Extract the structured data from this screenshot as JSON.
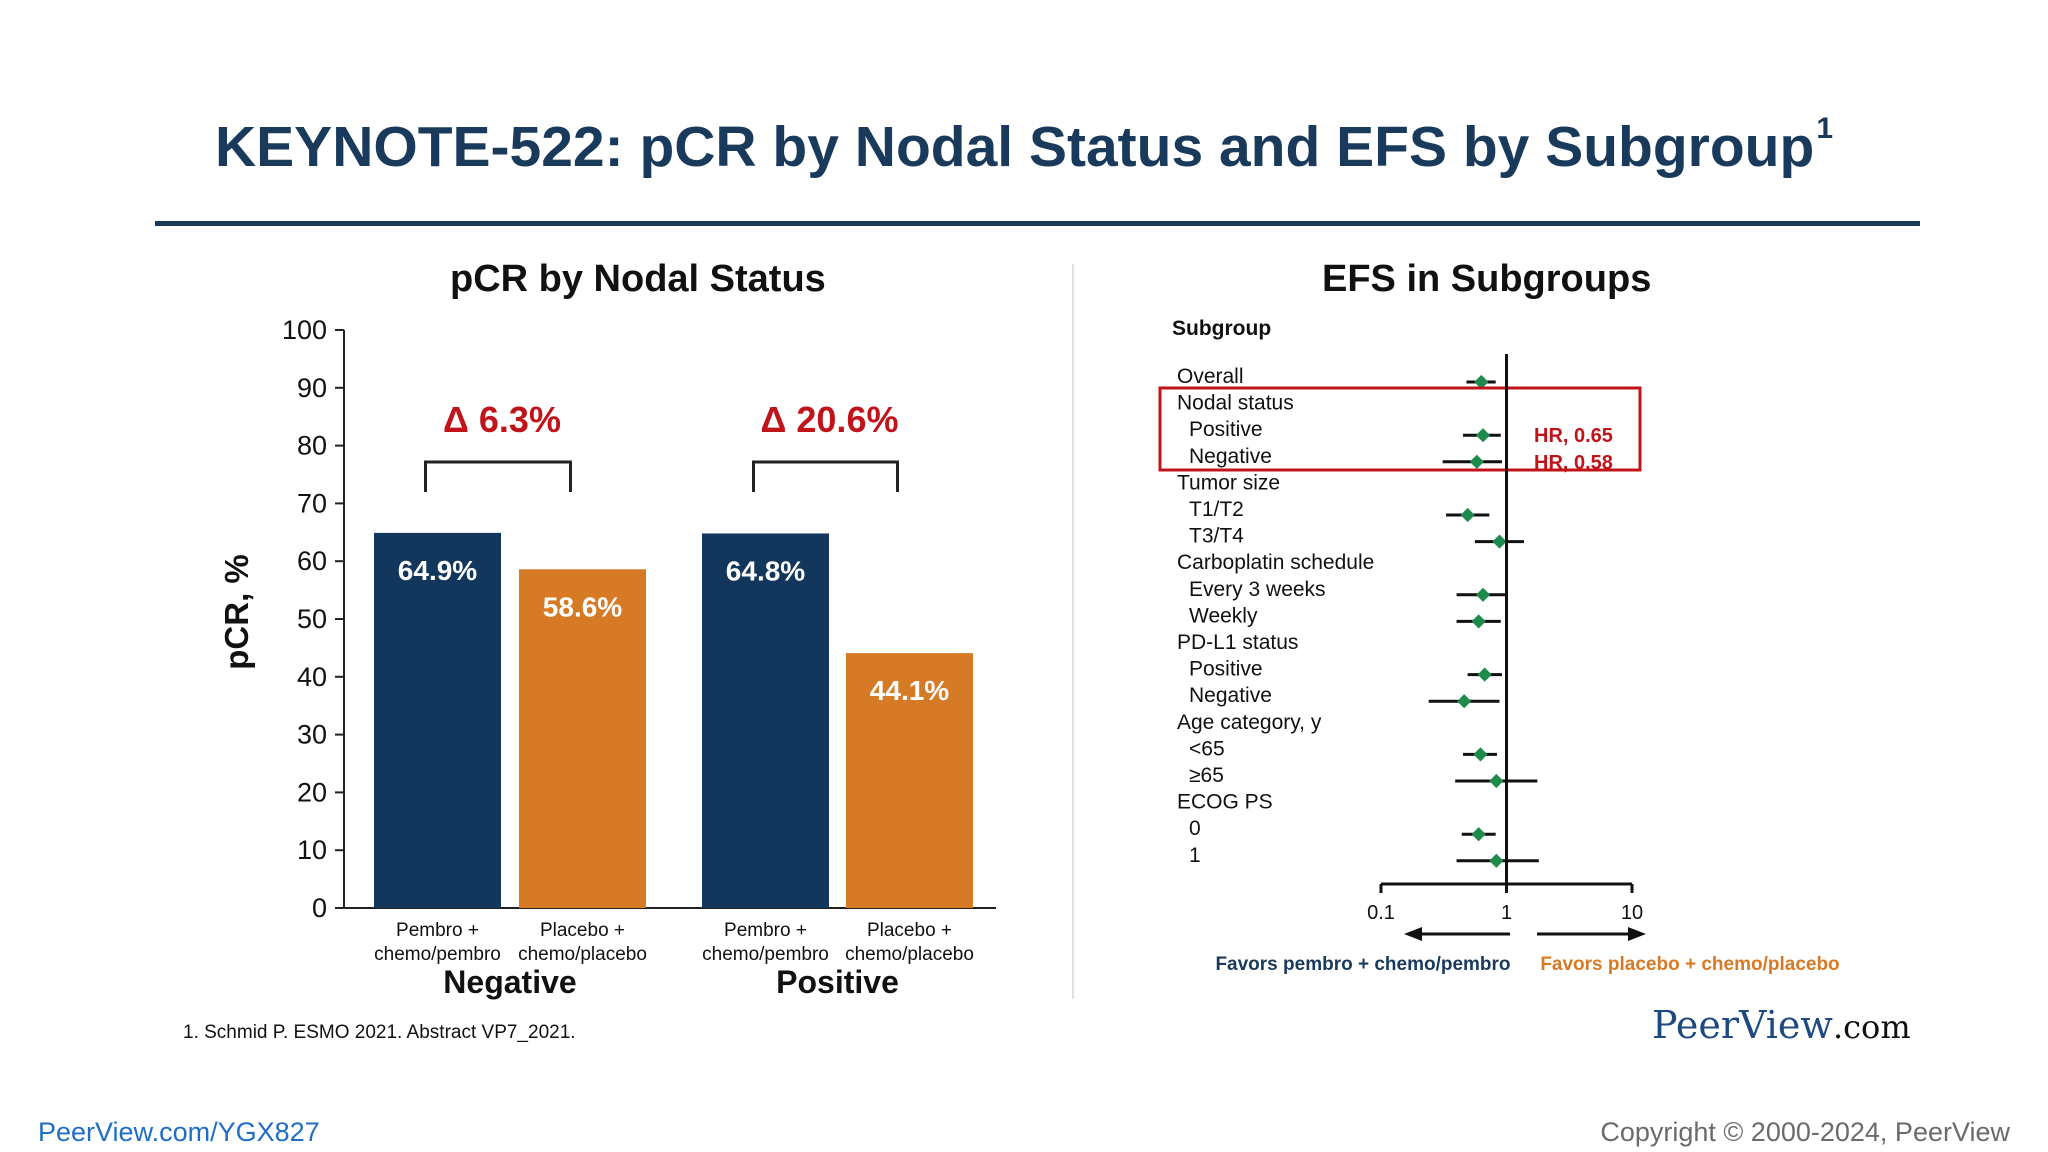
{
  "title": "KEYNOTE-522: pCR by Nodal Status and EFS by Subgroup",
  "title_sup": "1",
  "colors": {
    "navy": "#13365d",
    "orange": "#d67a25",
    "red": "#c1141a",
    "green": "#1e8a4c"
  },
  "footnote": "1. Schmid P. ESMO 2021. Abstract VP7_2021.",
  "logo": {
    "main": "PeerView",
    "suffix": ".com"
  },
  "footer": {
    "url": "PeerView.com/YGX827",
    "copyright": "Copyright © 2000-2024, PeerView"
  },
  "chart_data": [
    {
      "type": "bar",
      "title": "pCR by Nodal Status",
      "ylabel": "pCR, %",
      "ylim": [
        0,
        100
      ],
      "yticks": [
        0,
        10,
        20,
        30,
        40,
        50,
        60,
        70,
        80,
        90,
        100
      ],
      "groups": [
        {
          "name": "Negative",
          "delta": "Δ 6.3%",
          "bars": [
            {
              "label_line1": "Pembro +",
              "label_line2": "chemo/pembro",
              "value": 64.9,
              "value_label": "64.9%",
              "color": "#13365d"
            },
            {
              "label_line1": "Placebo +",
              "label_line2": "chemo/placebo",
              "value": 58.6,
              "value_label": "58.6%",
              "color": "#d67a25"
            }
          ]
        },
        {
          "name": "Positive",
          "delta": "Δ 20.6%",
          "bars": [
            {
              "label_line1": "Pembro +",
              "label_line2": "chemo/pembro",
              "value": 64.8,
              "value_label": "64.8%",
              "color": "#13365d"
            },
            {
              "label_line1": "Placebo +",
              "label_line2": "chemo/placebo",
              "value": 44.1,
              "value_label": "44.1%",
              "color": "#d67a25"
            }
          ]
        }
      ]
    },
    {
      "type": "forest",
      "title": "EFS in Subgroups",
      "header": "Subgroup",
      "x_scale": "log",
      "xlim": [
        0.1,
        10
      ],
      "xticks": [
        0.1,
        1,
        10
      ],
      "xtick_labels": [
        "0.1",
        "1",
        "10"
      ],
      "reference_line": 1,
      "favors_left": "Favors pembro + chemo/pembro",
      "favors_right": "Favors placebo + chemo/placebo",
      "rows": [
        {
          "label": "Overall",
          "indent": false,
          "hr": 0.63,
          "lo": 0.48,
          "hi": 0.82
        },
        {
          "label": "Nodal status",
          "indent": false
        },
        {
          "label": "Positive",
          "indent": true,
          "hr": 0.65,
          "lo": 0.45,
          "hi": 0.9,
          "hr_label": "HR, 0.65"
        },
        {
          "label": "Negative",
          "indent": true,
          "hr": 0.58,
          "lo": 0.31,
          "hi": 0.92,
          "hr_label": "HR, 0.58"
        },
        {
          "label": "Tumor size",
          "indent": false
        },
        {
          "label": "T1/T2",
          "indent": true,
          "hr": 0.49,
          "lo": 0.33,
          "hi": 0.73
        },
        {
          "label": "T3/T4",
          "indent": true,
          "hr": 0.88,
          "lo": 0.56,
          "hi": 1.38
        },
        {
          "label": "Carboplatin schedule",
          "indent": false
        },
        {
          "label": "Every 3 weeks",
          "indent": true,
          "hr": 0.65,
          "lo": 0.4,
          "hi": 1.02
        },
        {
          "label": "Weekly",
          "indent": true,
          "hr": 0.6,
          "lo": 0.4,
          "hi": 0.9
        },
        {
          "label": "PD-L1 status",
          "indent": false
        },
        {
          "label": "Positive",
          "indent": true,
          "hr": 0.67,
          "lo": 0.49,
          "hi": 0.92
        },
        {
          "label": "Negative",
          "indent": true,
          "hr": 0.46,
          "lo": 0.24,
          "hi": 0.88
        },
        {
          "label": "Age category, y",
          "indent": false
        },
        {
          "label": "<65",
          "indent": true,
          "hr": 0.62,
          "lo": 0.45,
          "hi": 0.84
        },
        {
          "label": "≥65",
          "indent": true,
          "hr": 0.83,
          "lo": 0.39,
          "hi": 1.76
        },
        {
          "label": "ECOG PS",
          "indent": false
        },
        {
          "label": "0",
          "indent": true,
          "hr": 0.6,
          "lo": 0.44,
          "hi": 0.82
        },
        {
          "label": "1",
          "indent": true,
          "hr": 0.83,
          "lo": 0.4,
          "hi": 1.81
        }
      ]
    }
  ]
}
